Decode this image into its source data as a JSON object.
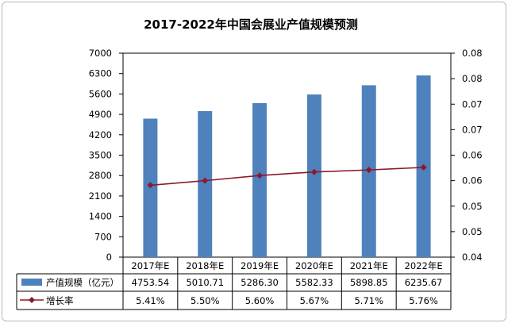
{
  "chart_data": {
    "type": "bar",
    "title": "2017-2022年中国会展业产值规模预测",
    "categories": [
      "2017年E",
      "2018年E",
      "2019年E",
      "2020年E",
      "2021年E",
      "2022年E"
    ],
    "series": [
      {
        "name": "产值规模（亿元）",
        "type": "bar",
        "axis": "left",
        "color": "#4f81bd",
        "values": [
          4753.54,
          5010.71,
          5286.3,
          5582.33,
          5898.85,
          6235.67
        ],
        "labels": [
          "4753.54",
          "5010.71",
          "5286.30",
          "5582.33",
          "5898.85",
          "6235.67"
        ]
      },
      {
        "name": "增长率",
        "type": "line",
        "axis": "right",
        "color": "#8b1a2b",
        "marker": "diamond",
        "values": [
          0.0541,
          0.055,
          0.056,
          0.0567,
          0.0571,
          0.0576
        ],
        "labels": [
          "5.41%",
          "5.50%",
          "5.60%",
          "5.67%",
          "5.71%",
          "5.76%"
        ]
      }
    ],
    "y_left": {
      "range": [
        0,
        7000
      ],
      "ticks": [
        0,
        700,
        1400,
        2100,
        2800,
        3500,
        4200,
        4900,
        5600,
        6300,
        7000
      ],
      "tick_labels": [
        "0",
        "700",
        "1400",
        "2100",
        "2800",
        "3500",
        "4200",
        "4900",
        "5600",
        "6300",
        "7000"
      ]
    },
    "y_right": {
      "range": [
        0.04,
        0.08
      ],
      "ticks": [
        0.04,
        0.045,
        0.05,
        0.055,
        0.06,
        0.065,
        0.07,
        0.075,
        0.08
      ],
      "tick_labels": [
        "0.04",
        "0.05",
        "0.05",
        "0.06",
        "0.06",
        "0.07",
        "0.07",
        "0.08",
        "0.08"
      ]
    },
    "grid": false,
    "legend": "data table below plot"
  }
}
